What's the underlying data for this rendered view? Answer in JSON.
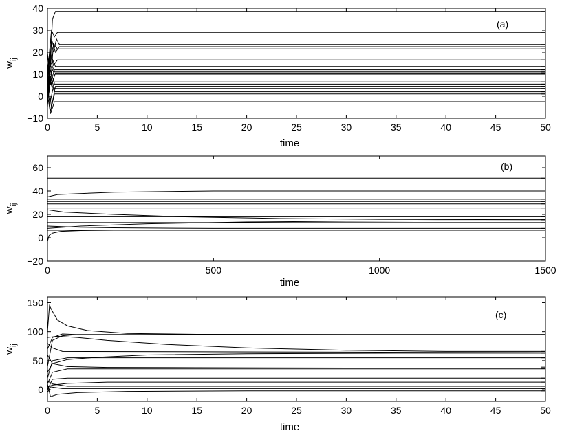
{
  "chart_data": [
    {
      "type": "line",
      "panel_label": "(a)",
      "xlabel": "time",
      "ylabel_main": "w",
      "ylabel_sub": "ij",
      "xlim": [
        0,
        50
      ],
      "ylim": [
        -10,
        40
      ],
      "xticks": [
        0,
        5,
        10,
        15,
        20,
        25,
        30,
        35,
        40,
        45,
        50
      ],
      "yticks": [
        -10,
        0,
        10,
        20,
        30,
        40
      ],
      "grid": false,
      "steady_values": [
        38.5,
        29,
        23.5,
        22.5,
        21.5,
        16.5,
        13.5,
        12,
        11,
        10.5,
        10,
        6.5,
        5.5,
        4.5,
        3.5,
        2,
        1,
        -2.5
      ],
      "series": [
        {
          "x": [
            0,
            0.3,
            0.5,
            0.8,
            1.2,
            50
          ],
          "y": [
            0,
            15,
            35,
            38.5,
            38.5,
            38.5
          ]
        },
        {
          "x": [
            0,
            0.4,
            0.7,
            1.0,
            50
          ],
          "y": [
            10,
            30,
            27,
            29,
            29
          ]
        },
        {
          "x": [
            0,
            0.3,
            0.6,
            0.9,
            1.2,
            50
          ],
          "y": [
            5,
            25,
            20,
            26,
            23.5,
            23.5
          ]
        },
        {
          "x": [
            0,
            0.4,
            0.8,
            1.2,
            50
          ],
          "y": [
            0,
            26,
            20,
            22.5,
            22.5
          ]
        },
        {
          "x": [
            0,
            0.3,
            0.6,
            1.0,
            50
          ],
          "y": [
            15,
            5,
            24,
            21.5,
            21.5
          ]
        },
        {
          "x": [
            0,
            0.3,
            0.6,
            1.0,
            50
          ],
          "y": [
            8,
            20,
            14,
            16.5,
            16.5
          ]
        },
        {
          "x": [
            0,
            0.4,
            0.8,
            50
          ],
          "y": [
            3,
            18,
            13.5,
            13.5
          ]
        },
        {
          "x": [
            0,
            0.3,
            0.7,
            50
          ],
          "y": [
            20,
            6,
            12,
            12
          ]
        },
        {
          "x": [
            0,
            0.3,
            0.7,
            50
          ],
          "y": [
            2,
            16,
            11,
            11
          ]
        },
        {
          "x": [
            0,
            0.4,
            0.8,
            50
          ],
          "y": [
            14,
            5,
            10.5,
            10.5
          ]
        },
        {
          "x": [
            0,
            0.3,
            0.7,
            50
          ],
          "y": [
            -5,
            14,
            10,
            10
          ]
        },
        {
          "x": [
            0,
            0.3,
            0.7,
            50
          ],
          "y": [
            12,
            -2,
            6.5,
            6.5
          ]
        },
        {
          "x": [
            0,
            0.3,
            0.7,
            50
          ],
          "y": [
            -3,
            12,
            5.5,
            5.5
          ]
        },
        {
          "x": [
            0,
            0.4,
            0.8,
            50
          ],
          "y": [
            9,
            -5,
            4.5,
            4.5
          ]
        },
        {
          "x": [
            0,
            0.3,
            0.7,
            50
          ],
          "y": [
            4,
            9,
            3.5,
            3.5
          ]
        },
        {
          "x": [
            0,
            0.3,
            0.7,
            50
          ],
          "y": [
            -2,
            7,
            2,
            2
          ]
        },
        {
          "x": [
            0,
            0.3,
            0.7,
            50
          ],
          "y": [
            6,
            -7,
            1,
            1
          ]
        },
        {
          "x": [
            0,
            0.3,
            0.7,
            50
          ],
          "y": [
            1,
            -8,
            -2.5,
            -2.5
          ]
        }
      ]
    },
    {
      "type": "line",
      "panel_label": "(b)",
      "xlabel": "time",
      "ylabel_main": "w",
      "ylabel_sub": "ij",
      "xlim": [
        0,
        1500
      ],
      "ylim": [
        -20,
        70
      ],
      "xticks": [
        0,
        500,
        1000,
        1500
      ],
      "yticks": [
        -20,
        0,
        20,
        40,
        60
      ],
      "grid": false,
      "steady_values": [
        51,
        40,
        33,
        31,
        29,
        25.5,
        18,
        15.5,
        14.5,
        13,
        8,
        6.5
      ],
      "series": [
        {
          "x": [
            0,
            1500
          ],
          "y": [
            51,
            51
          ]
        },
        {
          "x": [
            0,
            30,
            200,
            500,
            1000,
            1500
          ],
          "y": [
            35,
            37,
            39,
            40,
            40,
            40
          ]
        },
        {
          "x": [
            0,
            1500
          ],
          "y": [
            33,
            33
          ]
        },
        {
          "x": [
            0,
            1500
          ],
          "y": [
            31,
            31
          ]
        },
        {
          "x": [
            0,
            1500
          ],
          "y": [
            29,
            29
          ]
        },
        {
          "x": [
            0,
            1500
          ],
          "y": [
            25.5,
            25.5
          ]
        },
        {
          "x": [
            0,
            1500
          ],
          "y": [
            18,
            18
          ]
        },
        {
          "x": [
            0,
            50,
            200,
            400,
            700,
            1000,
            1500
          ],
          "y": [
            24,
            22,
            20,
            18,
            16.5,
            15.8,
            15.5
          ]
        },
        {
          "x": [
            0,
            100,
            300,
            600,
            900,
            1200,
            1500
          ],
          "y": [
            8,
            10,
            12,
            13.5,
            14.2,
            14.5,
            14.5
          ]
        },
        {
          "x": [
            0,
            1500
          ],
          "y": [
            13,
            13
          ]
        },
        {
          "x": [
            0,
            100,
            200,
            500,
            1500
          ],
          "y": [
            10,
            9,
            8.5,
            8,
            8
          ]
        },
        {
          "x": [
            0,
            1500
          ],
          "y": [
            6.5,
            6.5
          ]
        },
        {
          "x": [
            0,
            5,
            15,
            40,
            100,
            200,
            1500
          ],
          "y": [
            -3,
            2,
            4,
            5.5,
            6.2,
            6.5,
            6.5
          ]
        }
      ]
    },
    {
      "type": "line",
      "panel_label": "(c)",
      "xlabel": "time",
      "ylabel_main": "w",
      "ylabel_sub": "ij",
      "xlim": [
        0,
        50
      ],
      "ylim": [
        -20,
        160
      ],
      "xticks": [
        0,
        5,
        10,
        15,
        20,
        25,
        30,
        35,
        40,
        45,
        50
      ],
      "yticks": [
        0,
        50,
        100,
        150
      ],
      "grid": false,
      "steady_values": [
        95,
        66,
        63,
        55,
        39,
        37,
        20,
        13,
        6,
        2,
        -2
      ],
      "series": [
        {
          "x": [
            0,
            0.2,
            0.5,
            1.0,
            2,
            4,
            8,
            15,
            30,
            50
          ],
          "y": [
            100,
            145,
            135,
            120,
            110,
            102,
            97,
            95.5,
            95,
            95
          ]
        },
        {
          "x": [
            0,
            0.5,
            1.5,
            3,
            50
          ],
          "y": [
            70,
            90,
            96,
            95,
            95
          ]
        },
        {
          "x": [
            0,
            0.5,
            1.5,
            3,
            6,
            50
          ],
          "y": [
            40,
            85,
            93,
            95,
            95,
            95
          ]
        },
        {
          "x": [
            0,
            1,
            3,
            6,
            12,
            20,
            30,
            40,
            50
          ],
          "y": [
            90,
            92,
            90,
            85,
            78,
            72,
            68,
            66,
            66
          ]
        },
        {
          "x": [
            0,
            0.5,
            2,
            5,
            10,
            20,
            35,
            50
          ],
          "y": [
            30,
            45,
            52,
            56,
            60,
            62,
            63,
            63
          ]
        },
        {
          "x": [
            0,
            0.5,
            1.5,
            50
          ],
          "y": [
            80,
            72,
            66,
            64
          ]
        },
        {
          "x": [
            0,
            0.5,
            2,
            50
          ],
          "y": [
            20,
            50,
            55,
            55
          ]
        },
        {
          "x": [
            0,
            0.5,
            2,
            6,
            15,
            30,
            50
          ],
          "y": [
            60,
            45,
            40,
            38.5,
            38,
            37.5,
            37.5
          ]
        },
        {
          "x": [
            0,
            0.5,
            2,
            50
          ],
          "y": [
            10,
            30,
            36,
            36
          ]
        },
        {
          "x": [
            0,
            0.5,
            2,
            50
          ],
          "y": [
            0,
            18,
            20,
            20
          ]
        },
        {
          "x": [
            0,
            0.5,
            2,
            6,
            50
          ],
          "y": [
            5,
            8,
            11,
            13,
            13
          ]
        },
        {
          "x": [
            0,
            0.5,
            2,
            50
          ],
          "y": [
            15,
            10,
            6,
            6
          ]
        },
        {
          "x": [
            0,
            0.3,
            1.5,
            50
          ],
          "y": [
            -5,
            5,
            2,
            2
          ]
        },
        {
          "x": [
            0,
            0.3,
            1,
            3,
            8,
            20,
            50
          ],
          "y": [
            10,
            -12,
            -8,
            -5,
            -3,
            -2,
            -2
          ]
        }
      ]
    }
  ]
}
